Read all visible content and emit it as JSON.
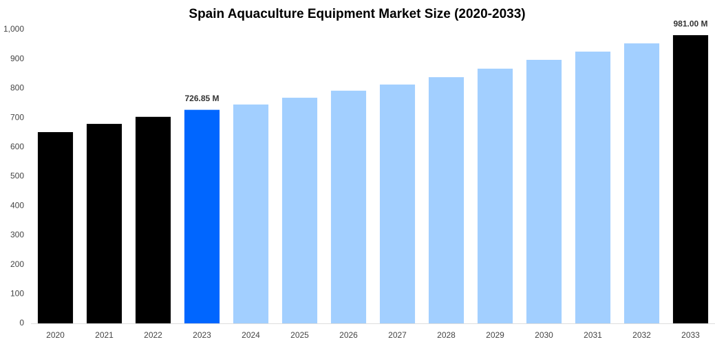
{
  "chart_data": {
    "type": "bar",
    "title": "Spain Aquaculture Equipment Market Size (2020-2033)",
    "categories": [
      "2020",
      "2021",
      "2022",
      "2023",
      "2024",
      "2025",
      "2026",
      "2027",
      "2028",
      "2029",
      "2030",
      "2031",
      "2032",
      "2033"
    ],
    "values": [
      651,
      679,
      703,
      726.85,
      745,
      768,
      792,
      813,
      838,
      867,
      897,
      925,
      953,
      981
    ],
    "value_labels": [
      null,
      null,
      null,
      "726.85 M",
      null,
      null,
      null,
      null,
      null,
      null,
      null,
      null,
      null,
      "981.00 M"
    ],
    "colors": [
      "#000000",
      "#000000",
      "#000000",
      "#0066ff",
      "#a2cfff",
      "#a2cfff",
      "#a2cfff",
      "#a2cfff",
      "#a2cfff",
      "#a2cfff",
      "#a2cfff",
      "#a2cfff",
      "#a2cfff",
      "#000000"
    ],
    "ylim": [
      0,
      1000
    ],
    "yticks": [
      0,
      100,
      200,
      300,
      400,
      500,
      600,
      700,
      800,
      900,
      {
        "value": 1000,
        "label": "1,000"
      }
    ],
    "grid": false
  }
}
